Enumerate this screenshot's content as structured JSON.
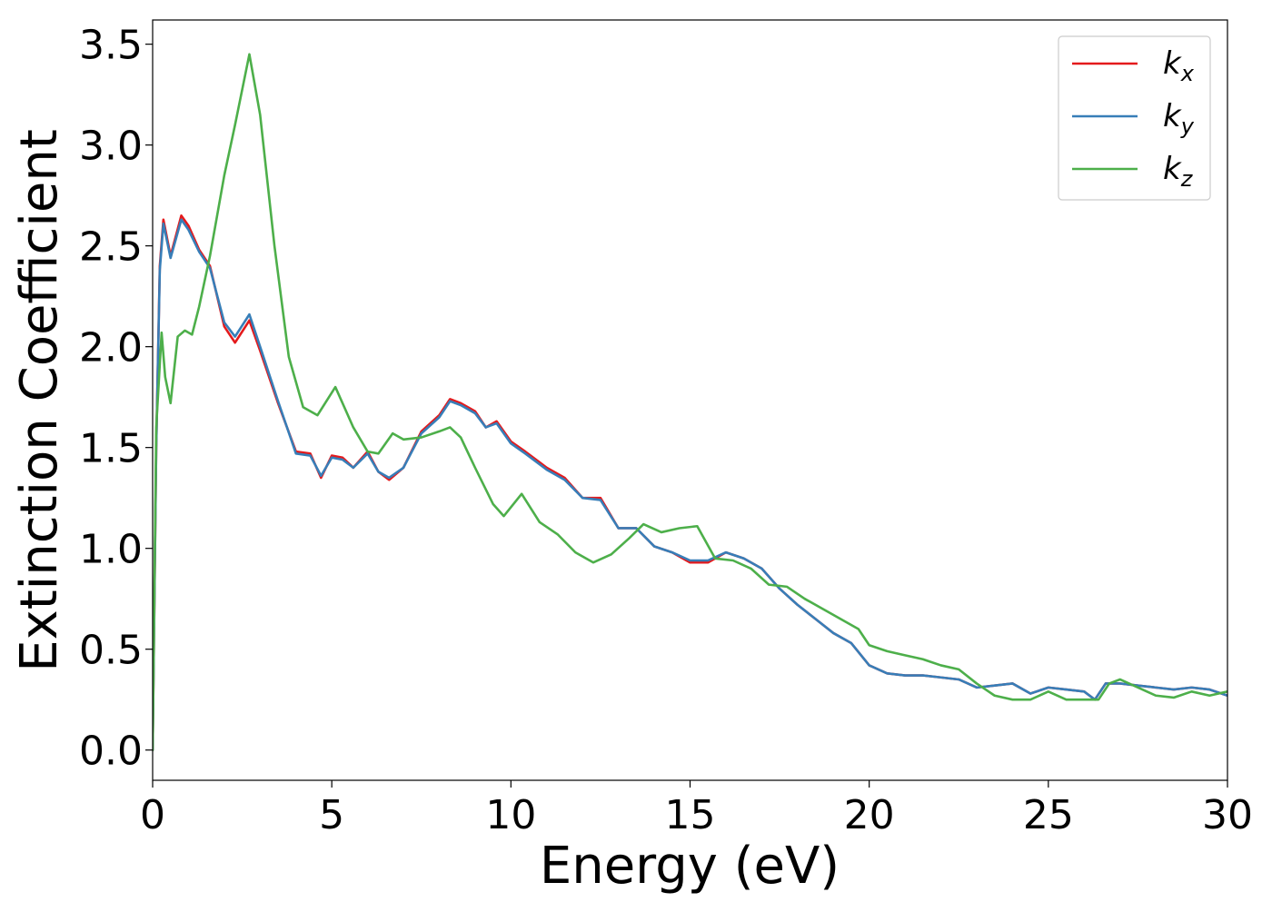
{
  "chart_data": {
    "type": "line",
    "title": "",
    "xlabel": "Energy (eV)",
    "ylabel": "Extinction Coefficient",
    "xlim": [
      0,
      30
    ],
    "ylim": [
      -0.15,
      3.62
    ],
    "xticks": [
      0,
      5,
      10,
      15,
      20,
      25,
      30
    ],
    "yticks": [
      0.0,
      0.5,
      1.0,
      1.5,
      2.0,
      2.5,
      3.0,
      3.5
    ],
    "xtick_labels": [
      "0",
      "5",
      "10",
      "15",
      "20",
      "25",
      "30"
    ],
    "ytick_labels": [
      "0.0",
      "0.5",
      "1.0",
      "1.5",
      "2.0",
      "2.5",
      "3.0",
      "3.5"
    ],
    "grid": false,
    "legend_position": "top-right",
    "series": [
      {
        "name": "k",
        "subscript": "x",
        "color": "#e41a1c",
        "x": [
          0.0,
          0.1,
          0.2,
          0.3,
          0.5,
          0.8,
          1.0,
          1.3,
          1.6,
          2.0,
          2.3,
          2.7,
          3.0,
          3.5,
          4.0,
          4.4,
          4.7,
          5.0,
          5.3,
          5.6,
          6.0,
          6.3,
          6.6,
          7.0,
          7.5,
          8.0,
          8.3,
          8.6,
          9.0,
          9.3,
          9.6,
          10.0,
          10.4,
          11.0,
          11.5,
          12.0,
          12.5,
          13.0,
          13.5,
          14.0,
          14.5,
          15.0,
          15.5,
          16.0,
          16.5,
          17.0,
          17.5,
          18.0,
          18.5,
          19.0,
          19.5,
          20.0,
          20.5,
          21.0,
          21.5,
          22.0,
          22.5,
          23.0,
          23.5,
          24.0,
          24.5,
          25.0,
          25.5,
          26.0,
          26.3,
          26.6,
          27.0,
          27.5,
          28.0,
          28.5,
          29.0,
          29.5,
          30.0
        ],
        "y": [
          0.0,
          1.5,
          2.4,
          2.63,
          2.45,
          2.65,
          2.6,
          2.48,
          2.4,
          2.1,
          2.02,
          2.13,
          1.98,
          1.72,
          1.48,
          1.47,
          1.35,
          1.46,
          1.45,
          1.4,
          1.48,
          1.38,
          1.34,
          1.4,
          1.58,
          1.66,
          1.74,
          1.72,
          1.68,
          1.6,
          1.63,
          1.53,
          1.48,
          1.4,
          1.35,
          1.25,
          1.25,
          1.1,
          1.1,
          1.01,
          0.98,
          0.93,
          0.93,
          0.98,
          0.95,
          0.9,
          0.8,
          0.72,
          0.65,
          0.58,
          0.53,
          0.42,
          0.38,
          0.37,
          0.37,
          0.36,
          0.35,
          0.31,
          0.32,
          0.33,
          0.28,
          0.31,
          0.3,
          0.29,
          0.25,
          0.33,
          0.33,
          0.32,
          0.31,
          0.3,
          0.31,
          0.3,
          0.27
        ]
      },
      {
        "name": "k",
        "subscript": "y",
        "color": "#377eb8",
        "x": [
          0.0,
          0.1,
          0.2,
          0.3,
          0.5,
          0.8,
          1.0,
          1.3,
          1.6,
          2.0,
          2.3,
          2.7,
          3.0,
          3.5,
          4.0,
          4.4,
          4.7,
          5.0,
          5.3,
          5.6,
          6.0,
          6.3,
          6.6,
          7.0,
          7.5,
          8.0,
          8.3,
          8.6,
          9.0,
          9.3,
          9.6,
          10.0,
          10.4,
          11.0,
          11.5,
          12.0,
          12.5,
          13.0,
          13.5,
          14.0,
          14.5,
          15.0,
          15.5,
          16.0,
          16.5,
          17.0,
          17.5,
          18.0,
          18.5,
          19.0,
          19.5,
          20.0,
          20.5,
          21.0,
          21.5,
          22.0,
          22.5,
          23.0,
          23.5,
          24.0,
          24.5,
          25.0,
          25.5,
          26.0,
          26.3,
          26.6,
          27.0,
          27.5,
          28.0,
          28.5,
          29.0,
          29.5,
          30.0
        ],
        "y": [
          0.0,
          1.5,
          2.38,
          2.61,
          2.44,
          2.63,
          2.58,
          2.47,
          2.39,
          2.12,
          2.05,
          2.16,
          2.0,
          1.73,
          1.47,
          1.46,
          1.36,
          1.45,
          1.44,
          1.4,
          1.47,
          1.38,
          1.35,
          1.4,
          1.57,
          1.65,
          1.73,
          1.71,
          1.67,
          1.6,
          1.62,
          1.52,
          1.47,
          1.39,
          1.34,
          1.25,
          1.24,
          1.1,
          1.1,
          1.01,
          0.98,
          0.94,
          0.94,
          0.98,
          0.95,
          0.9,
          0.8,
          0.72,
          0.65,
          0.58,
          0.53,
          0.42,
          0.38,
          0.37,
          0.37,
          0.36,
          0.35,
          0.31,
          0.32,
          0.33,
          0.28,
          0.31,
          0.3,
          0.29,
          0.25,
          0.33,
          0.33,
          0.32,
          0.31,
          0.3,
          0.31,
          0.3,
          0.27
        ]
      },
      {
        "name": "k",
        "subscript": "z",
        "color": "#4daf4a",
        "x": [
          0.0,
          0.1,
          0.25,
          0.35,
          0.5,
          0.7,
          0.9,
          1.1,
          1.3,
          1.6,
          2.0,
          2.3,
          2.7,
          3.0,
          3.4,
          3.8,
          4.2,
          4.6,
          5.1,
          5.6,
          6.0,
          6.3,
          6.7,
          7.0,
          7.5,
          8.0,
          8.3,
          8.6,
          9.0,
          9.5,
          9.8,
          10.3,
          10.8,
          11.3,
          11.8,
          12.3,
          12.8,
          13.3,
          13.7,
          14.2,
          14.7,
          15.2,
          15.7,
          16.2,
          16.7,
          17.2,
          17.7,
          18.2,
          18.7,
          19.2,
          19.7,
          20.0,
          20.5,
          21.0,
          21.5,
          22.0,
          22.5,
          23.0,
          23.5,
          24.0,
          24.5,
          25.0,
          25.5,
          26.0,
          26.4,
          26.7,
          27.0,
          27.5,
          28.0,
          28.5,
          29.0,
          29.5,
          30.0
        ],
        "y": [
          0.0,
          1.6,
          2.07,
          1.85,
          1.72,
          2.05,
          2.08,
          2.06,
          2.2,
          2.45,
          2.85,
          3.1,
          3.45,
          3.15,
          2.5,
          1.95,
          1.7,
          1.66,
          1.8,
          1.6,
          1.48,
          1.47,
          1.57,
          1.54,
          1.55,
          1.58,
          1.6,
          1.55,
          1.4,
          1.22,
          1.16,
          1.27,
          1.13,
          1.07,
          0.98,
          0.93,
          0.97,
          1.05,
          1.12,
          1.08,
          1.1,
          1.11,
          0.95,
          0.94,
          0.9,
          0.82,
          0.81,
          0.75,
          0.7,
          0.65,
          0.6,
          0.52,
          0.49,
          0.47,
          0.45,
          0.42,
          0.4,
          0.33,
          0.27,
          0.25,
          0.25,
          0.29,
          0.25,
          0.25,
          0.25,
          0.33,
          0.35,
          0.31,
          0.27,
          0.26,
          0.29,
          0.27,
          0.29
        ]
      }
    ]
  }
}
